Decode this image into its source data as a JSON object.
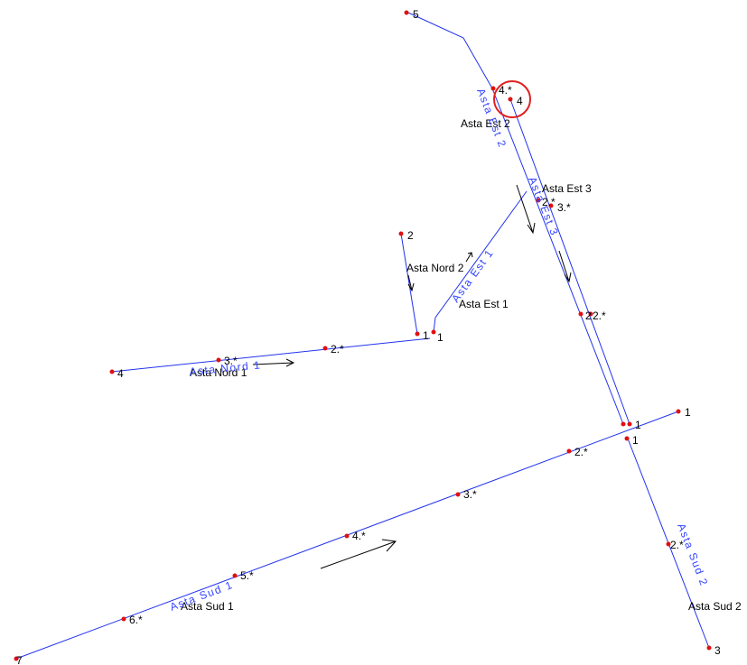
{
  "node_labels": [
    "5",
    "4.*",
    "4",
    "2.*",
    "3.*",
    "2",
    "2",
    "2.*",
    "1",
    "1",
    "2.*",
    "3.*",
    "4",
    "1",
    "1",
    "1",
    "2.*",
    "3.*",
    "4.*",
    "5.*",
    "6.*",
    "7",
    "2.*",
    "3"
  ],
  "names": [
    "Asta Est 2",
    "Asta Est 3",
    "Asta Nord 2",
    "Asta Est 1",
    "Asta Nord 1",
    "Asta Sud 1",
    "Asta Sud 2"
  ],
  "branch_labels": [
    "Asta Est 2",
    "Asta Est 3",
    "Asta Est 1",
    "Asta Nord 1",
    "Asta Sud 1",
    "Asta Sud 2"
  ]
}
